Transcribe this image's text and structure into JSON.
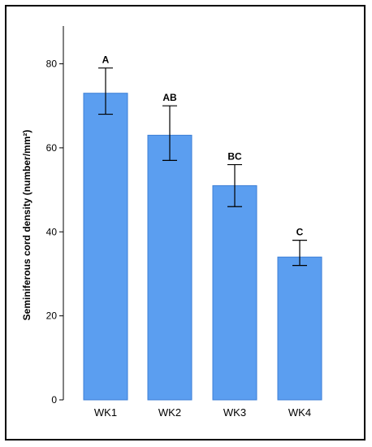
{
  "chart_data": {
    "type": "bar",
    "categories": [
      "WK1",
      "WK2",
      "WK3",
      "WK4"
    ],
    "values": [
      73,
      63,
      51,
      34
    ],
    "error_low": [
      68,
      57,
      46,
      32
    ],
    "error_high": [
      79,
      70,
      56,
      38
    ],
    "significance_labels": [
      "A",
      "AB",
      "BC",
      "C"
    ],
    "ylabel": "Seminiferous cord density (number/mm²)",
    "xlabel": "",
    "ylim": [
      0,
      89
    ],
    "yticks": [
      0,
      20,
      40,
      60,
      80
    ],
    "grid": false,
    "bar_color": "#5b9ef0",
    "bar_edge_color": "#3d7fd6"
  }
}
